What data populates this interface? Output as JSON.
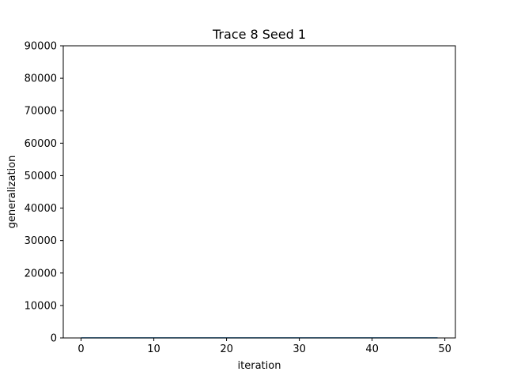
{
  "chart_data": {
    "type": "line",
    "title": "Trace 8 Seed 1",
    "xlabel": "iteration",
    "ylabel": "generalization",
    "xlim": [
      -2.45,
      51.45
    ],
    "ylim": [
      0,
      90000
    ],
    "xticks": [
      0,
      10,
      20,
      30,
      40,
      50
    ],
    "yticks": [
      0,
      10000,
      20000,
      30000,
      40000,
      50000,
      60000,
      70000,
      80000,
      90000
    ],
    "grid": false,
    "series": [
      {
        "color": "#1f77b4",
        "x": [
          0,
          1,
          2,
          3,
          4,
          5,
          6,
          7,
          8,
          9,
          10,
          11,
          12,
          13,
          14,
          15,
          16,
          17,
          18,
          19,
          20,
          21,
          22,
          23,
          24,
          25,
          26,
          27,
          28,
          29,
          30,
          31,
          32,
          33,
          34,
          35,
          36,
          37,
          38,
          39,
          40,
          41,
          42,
          43,
          44,
          45,
          46,
          47,
          48,
          49
        ],
        "y": [
          30,
          30,
          30,
          30,
          30,
          30,
          30,
          30,
          30,
          30,
          30,
          30,
          30,
          30,
          30,
          30,
          30,
          30,
          30,
          30,
          30,
          30,
          30,
          30,
          30,
          30,
          30,
          30,
          30,
          30,
          30,
          30,
          30,
          30,
          30,
          30,
          30,
          30,
          30,
          30,
          30,
          30,
          30,
          30,
          30,
          30,
          30,
          30,
          30,
          30
        ]
      }
    ]
  }
}
